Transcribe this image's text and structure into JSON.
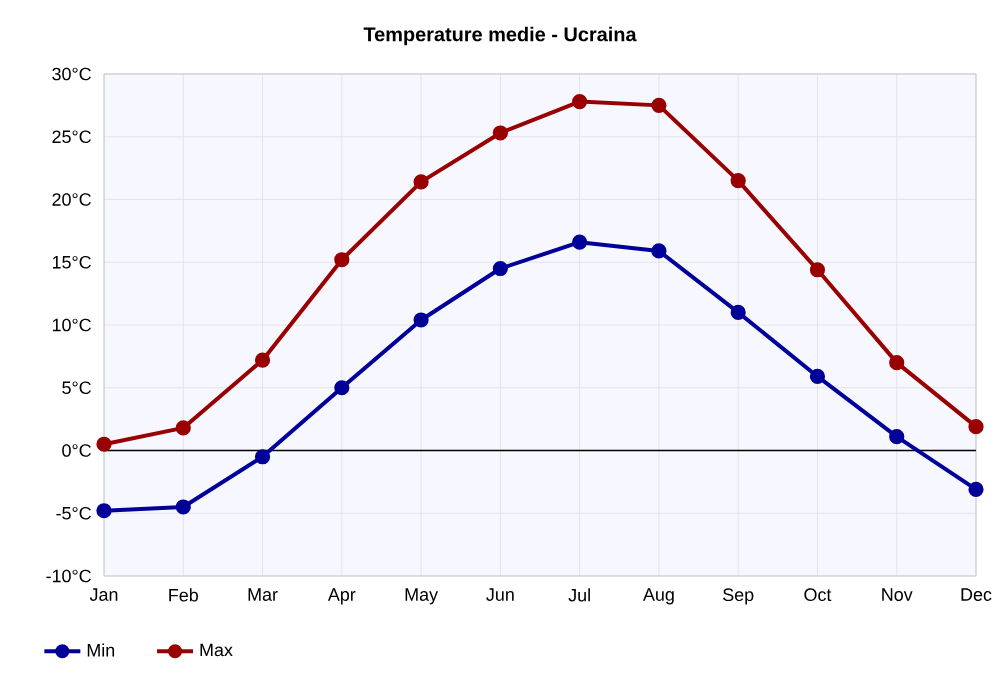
{
  "chart_data": {
    "type": "line",
    "title": "Temperature medie - Ucraina",
    "categories": [
      "Jan",
      "Feb",
      "Mar",
      "Apr",
      "May",
      "Jun",
      "Jul",
      "Aug",
      "Sep",
      "Oct",
      "Nov",
      "Dec"
    ],
    "series": [
      {
        "name": "Min",
        "color": "#000099",
        "values": [
          -4.8,
          -4.5,
          -0.5,
          5.0,
          10.4,
          14.5,
          16.6,
          15.9,
          11.0,
          5.9,
          1.1,
          -3.1
        ]
      },
      {
        "name": "Max",
        "color": "#990000",
        "values": [
          0.5,
          1.8,
          7.2,
          15.2,
          21.4,
          25.3,
          27.8,
          27.5,
          21.5,
          14.4,
          7.0,
          1.9
        ]
      }
    ],
    "ylim": [
      -10,
      30
    ],
    "yticks": [
      {
        "value": -10,
        "label": "-10°C"
      },
      {
        "value": -5,
        "label": "-5°C"
      },
      {
        "value": 0,
        "label": "0°C"
      },
      {
        "value": 5,
        "label": "5°C"
      },
      {
        "value": 10,
        "label": "10°C"
      },
      {
        "value": 15,
        "label": "15°C"
      },
      {
        "value": 20,
        "label": "20°C"
      },
      {
        "value": 25,
        "label": "25°C"
      },
      {
        "value": 30,
        "label": "30°C"
      }
    ],
    "ref_lines": [
      {
        "axis": "y",
        "value": 0,
        "color": "#000000"
      }
    ],
    "grid": true,
    "legend": "bottom left",
    "marker": "circle",
    "line_style": "solid"
  }
}
